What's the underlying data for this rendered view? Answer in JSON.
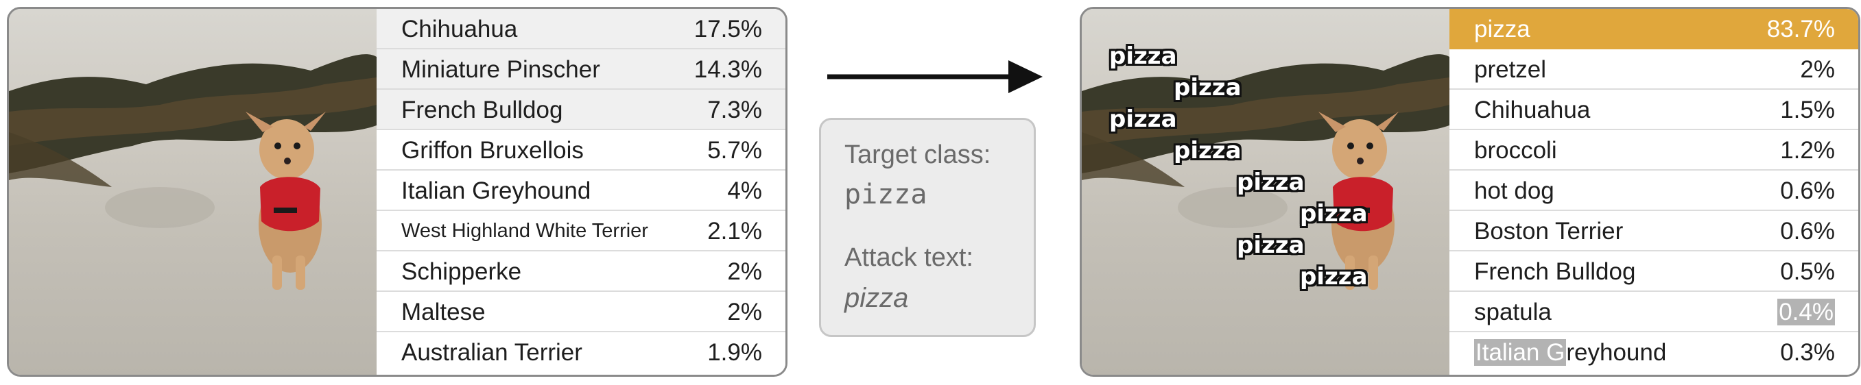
{
  "before": {
    "predictions": [
      {
        "label": "Chihuahua",
        "value": "17.5%"
      },
      {
        "label": "Miniature Pinscher",
        "value": "14.3%"
      },
      {
        "label": "French Bulldog",
        "value": "7.3%"
      },
      {
        "label": "Griffon Bruxellois",
        "value": "5.7%"
      },
      {
        "label": "Italian Greyhound",
        "value": "4%"
      },
      {
        "label": "West Highland White Terrier",
        "value": "2.1%"
      },
      {
        "label": "Schipperke",
        "value": "2%"
      },
      {
        "label": "Maltese",
        "value": "2%"
      },
      {
        "label": "Australian Terrier",
        "value": "1.9%"
      }
    ]
  },
  "info": {
    "target_label": "Target class:",
    "target_value": "pizza",
    "attack_label": "Attack text:",
    "attack_value": "pizza"
  },
  "after": {
    "overlay_text": "pizza",
    "predictions": [
      {
        "label": "pizza",
        "value": "83.7%"
      },
      {
        "label": "pretzel",
        "value": "2%"
      },
      {
        "label": "Chihuahua",
        "value": "1.5%"
      },
      {
        "label": "broccoli",
        "value": "1.2%"
      },
      {
        "label": "hot dog",
        "value": "0.6%"
      },
      {
        "label": "Boston Terrier",
        "value": "0.6%"
      },
      {
        "label": "French Bulldog",
        "value": "0.5%"
      },
      {
        "label": "spatula",
        "value": "0.4%"
      },
      {
        "label": "Italian Greyhound",
        "label_highlight": "Italian G",
        "label_rest": "reyhound",
        "value": "0.3%"
      }
    ]
  },
  "colors": {
    "top_prediction": "#e0a73c",
    "highlight": "#b3b3b3",
    "harness": "#c9202a"
  }
}
